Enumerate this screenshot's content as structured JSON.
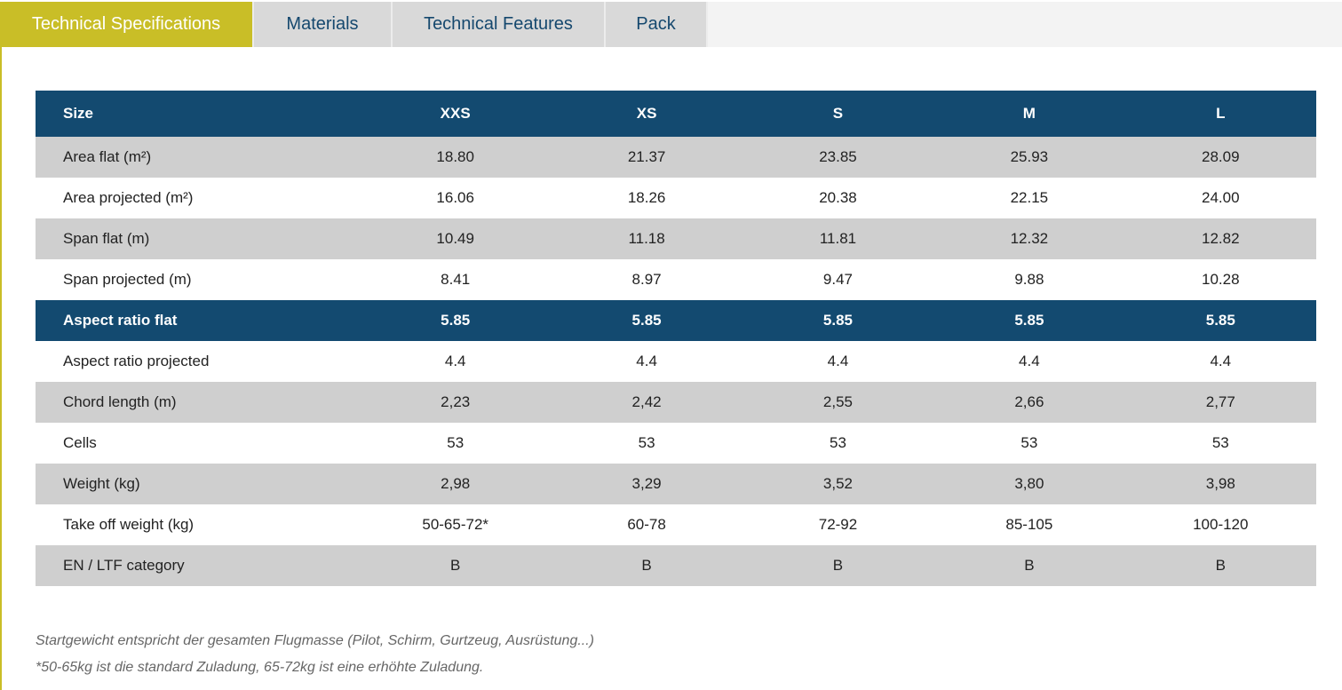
{
  "tabs": [
    {
      "label": "Technical Specifications",
      "active": true
    },
    {
      "label": "Materials",
      "active": false
    },
    {
      "label": "Technical Features",
      "active": false
    },
    {
      "label": "Pack",
      "active": false
    }
  ],
  "colors": {
    "accent": "#c9be27",
    "header_blue": "#134a70",
    "row_gray": "#cfcfcf",
    "tab_text": "#15486e"
  },
  "table": {
    "header": {
      "label": "Size",
      "sizes": [
        "XXS",
        "XS",
        "S",
        "M",
        "L"
      ]
    },
    "rows": [
      {
        "label": "Area flat (m²)",
        "values": [
          "18.80",
          "21.37",
          "23.85",
          "25.93",
          "28.09"
        ]
      },
      {
        "label": "Area projected (m²)",
        "values": [
          "16.06",
          "18.26",
          "20.38",
          "22.15",
          "24.00"
        ]
      },
      {
        "label": "Span flat (m)",
        "values": [
          "10.49",
          "11.18",
          "11.81",
          "12.32",
          "12.82"
        ]
      },
      {
        "label": "Span projected (m)",
        "values": [
          "8.41",
          "8.97",
          "9.47",
          "9.88",
          "10.28"
        ]
      },
      {
        "label": "Aspect ratio flat",
        "values": [
          "5.85",
          "5.85",
          "5.85",
          "5.85",
          "5.85"
        ]
      },
      {
        "label": "Aspect ratio projected",
        "values": [
          "4.4",
          "4.4",
          "4.4",
          "4.4",
          "4.4"
        ]
      },
      {
        "label": "Chord length (m)",
        "values": [
          "2,23",
          "2,42",
          "2,55",
          "2,66",
          "2,77"
        ]
      },
      {
        "label": "Cells",
        "values": [
          "53",
          "53",
          "53",
          "53",
          "53"
        ]
      },
      {
        "label": "Weight (kg)",
        "values": [
          "2,98",
          "3,29",
          "3,52",
          "3,80",
          "3,98"
        ]
      },
      {
        "label": "Take off weight (kg)",
        "values": [
          "50-65-72*",
          "60-78",
          "72-92",
          "85-105",
          "100-120"
        ]
      },
      {
        "label": "EN / LTF category",
        "values": [
          "B",
          "B",
          "B",
          "B",
          "B"
        ]
      }
    ]
  },
  "notes": {
    "line1": "Startgewicht entspricht der gesamten Flugmasse (Pilot, Schirm, Gurtzeug, Ausrüstung...)",
    "line2": "*50-65kg ist die standard Zuladung, 65-72kg ist eine erhöhte Zuladung."
  }
}
